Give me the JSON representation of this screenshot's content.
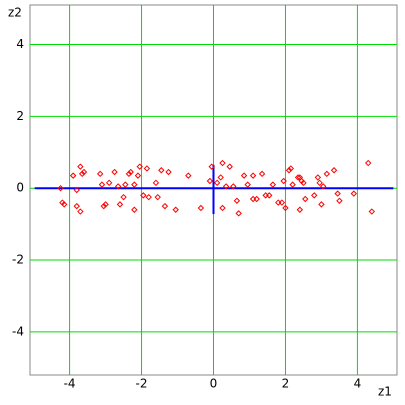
{
  "chart_data": {
    "type": "scatter",
    "x_label": "z1",
    "y_label": "z2",
    "xlim": [
      -5.1,
      5.1
    ],
    "ylim": [
      -5.2,
      5.1
    ],
    "xticks": [
      -4,
      -2,
      0,
      2,
      4
    ],
    "yticks": [
      -4,
      -2,
      0,
      2,
      4
    ],
    "grid": true,
    "grid_color": "#00dd00",
    "points": {
      "color": "#ff0000",
      "x": [
        -4.25,
        -4.2,
        -4.15,
        -3.9,
        -3.8,
        -3.8,
        -3.7,
        -3.7,
        -3.65,
        -3.6,
        -3.15,
        -3.1,
        -3.05,
        -3.0,
        -2.9,
        -2.75,
        -2.65,
        -2.6,
        -2.5,
        -2.45,
        -2.35,
        -2.3,
        -2.2,
        -2.2,
        -2.1,
        -2.05,
        -1.95,
        -1.85,
        -1.8,
        -1.6,
        -1.55,
        -1.45,
        -1.35,
        -1.25,
        -1.05,
        -0.7,
        -0.35,
        -0.1,
        -0.05,
        0.1,
        0.2,
        0.25,
        0.25,
        0.35,
        0.45,
        0.55,
        0.65,
        0.7,
        0.85,
        0.95,
        1.1,
        1.1,
        1.2,
        1.35,
        1.45,
        1.55,
        1.65,
        1.8,
        1.9,
        1.95,
        2.0,
        2.1,
        2.15,
        2.2,
        2.35,
        2.4,
        2.4,
        2.45,
        2.5,
        2.55,
        2.8,
        2.9,
        2.95,
        3.0,
        3.05,
        3.15,
        3.35,
        3.45,
        3.5,
        3.9,
        4.3,
        4.4
      ],
      "y": [
        0,
        -0.4,
        -0.45,
        0.35,
        -0.05,
        -0.5,
        0.6,
        -0.65,
        0.4,
        0.45,
        0.4,
        0.1,
        -0.5,
        -0.45,
        0.15,
        0.45,
        0.05,
        -0.45,
        -0.25,
        0.1,
        0.4,
        0.45,
        0.1,
        -0.6,
        0.35,
        0.6,
        -0.2,
        0.55,
        -0.25,
        0.15,
        -0.25,
        0.5,
        -0.5,
        0.45,
        -0.6,
        0.35,
        -0.55,
        0.2,
        0.6,
        0.15,
        0.3,
        0.7,
        -0.55,
        0.05,
        0.6,
        0.05,
        -0.35,
        -0.7,
        0.35,
        0.1,
        0.35,
        -0.3,
        -0.3,
        0.4,
        -0.2,
        -0.2,
        0.1,
        -0.4,
        -0.4,
        0.2,
        -0.55,
        0.5,
        0.55,
        0.1,
        0.3,
        0.3,
        -0.6,
        0.2,
        0.15,
        -0.3,
        -0.2,
        0.3,
        0.15,
        -0.45,
        0.05,
        0.4,
        0.5,
        -0.15,
        -0.35,
        -0.15,
        0.7,
        -0.65
      ]
    },
    "axis_lines": [
      {
        "color": "#0000ff",
        "x": [
          -4.97,
          5.0
        ],
        "y": [
          0,
          0
        ]
      },
      {
        "color": "#0000ff",
        "x": [
          0,
          0
        ],
        "y": [
          0.65,
          -0.72
        ]
      }
    ]
  }
}
